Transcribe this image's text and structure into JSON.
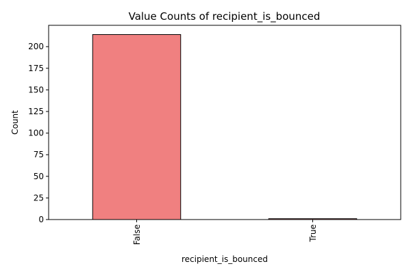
{
  "chart_data": {
    "type": "bar",
    "title": "Value Counts of recipient_is_bounced",
    "xlabel": "recipient_is_bounced",
    "ylabel": "Count",
    "categories": [
      "False",
      "True"
    ],
    "values": [
      214,
      1
    ],
    "ylim": [
      0,
      224.7
    ],
    "yticks": [
      0,
      25,
      50,
      75,
      100,
      125,
      150,
      175,
      200
    ],
    "grid": false,
    "legend": "none",
    "colors": {
      "bar_fill": "#f08080",
      "bar_edge": "#000000",
      "axis": "#000000",
      "background": "#ffffff"
    }
  }
}
